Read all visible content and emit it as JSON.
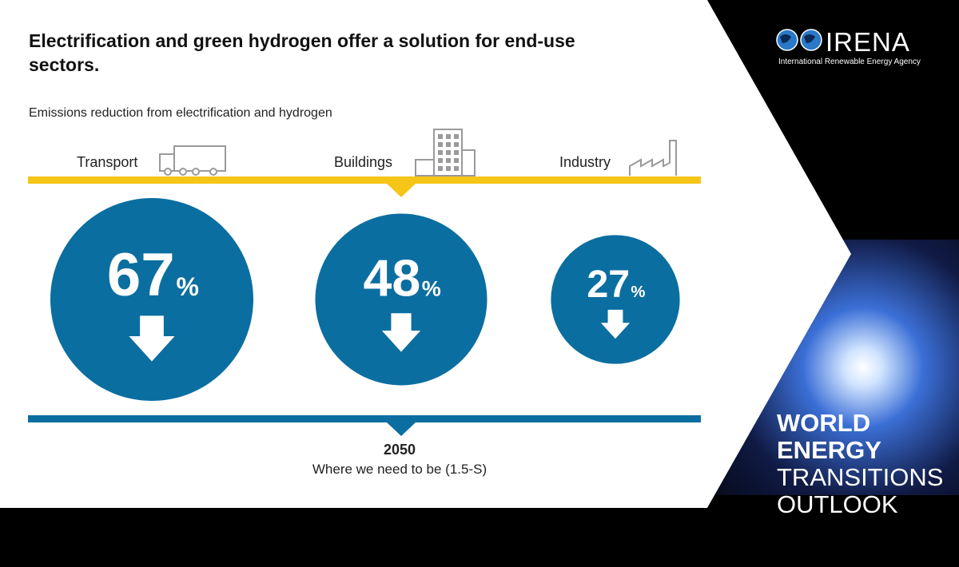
{
  "title": "Electrification and green hydrogen offer a solution for end-use sectors.",
  "brand": {
    "name": "IRENA",
    "full_name": "International Renewable Energy Agency",
    "accent": "#F5C518",
    "circle_color": "#0B6EA0",
    "bar_color": "#0B6EA0"
  },
  "branding_block": {
    "line1": "WORLD",
    "line2": "ENERGY",
    "line3": "TRANSITIONS",
    "line4": "OUTLOOK"
  },
  "chart_data": {
    "type": "bubble",
    "title": "Emissions reduction from electrification and hydrogen",
    "categories": [
      "Transport",
      "Buildings",
      "Industry"
    ],
    "values": [
      67,
      48,
      27
    ],
    "unit": "%",
    "direction": "reduction",
    "scenario_year": "2050",
    "scenario_label": "Where we need to be (1.5-S)"
  }
}
